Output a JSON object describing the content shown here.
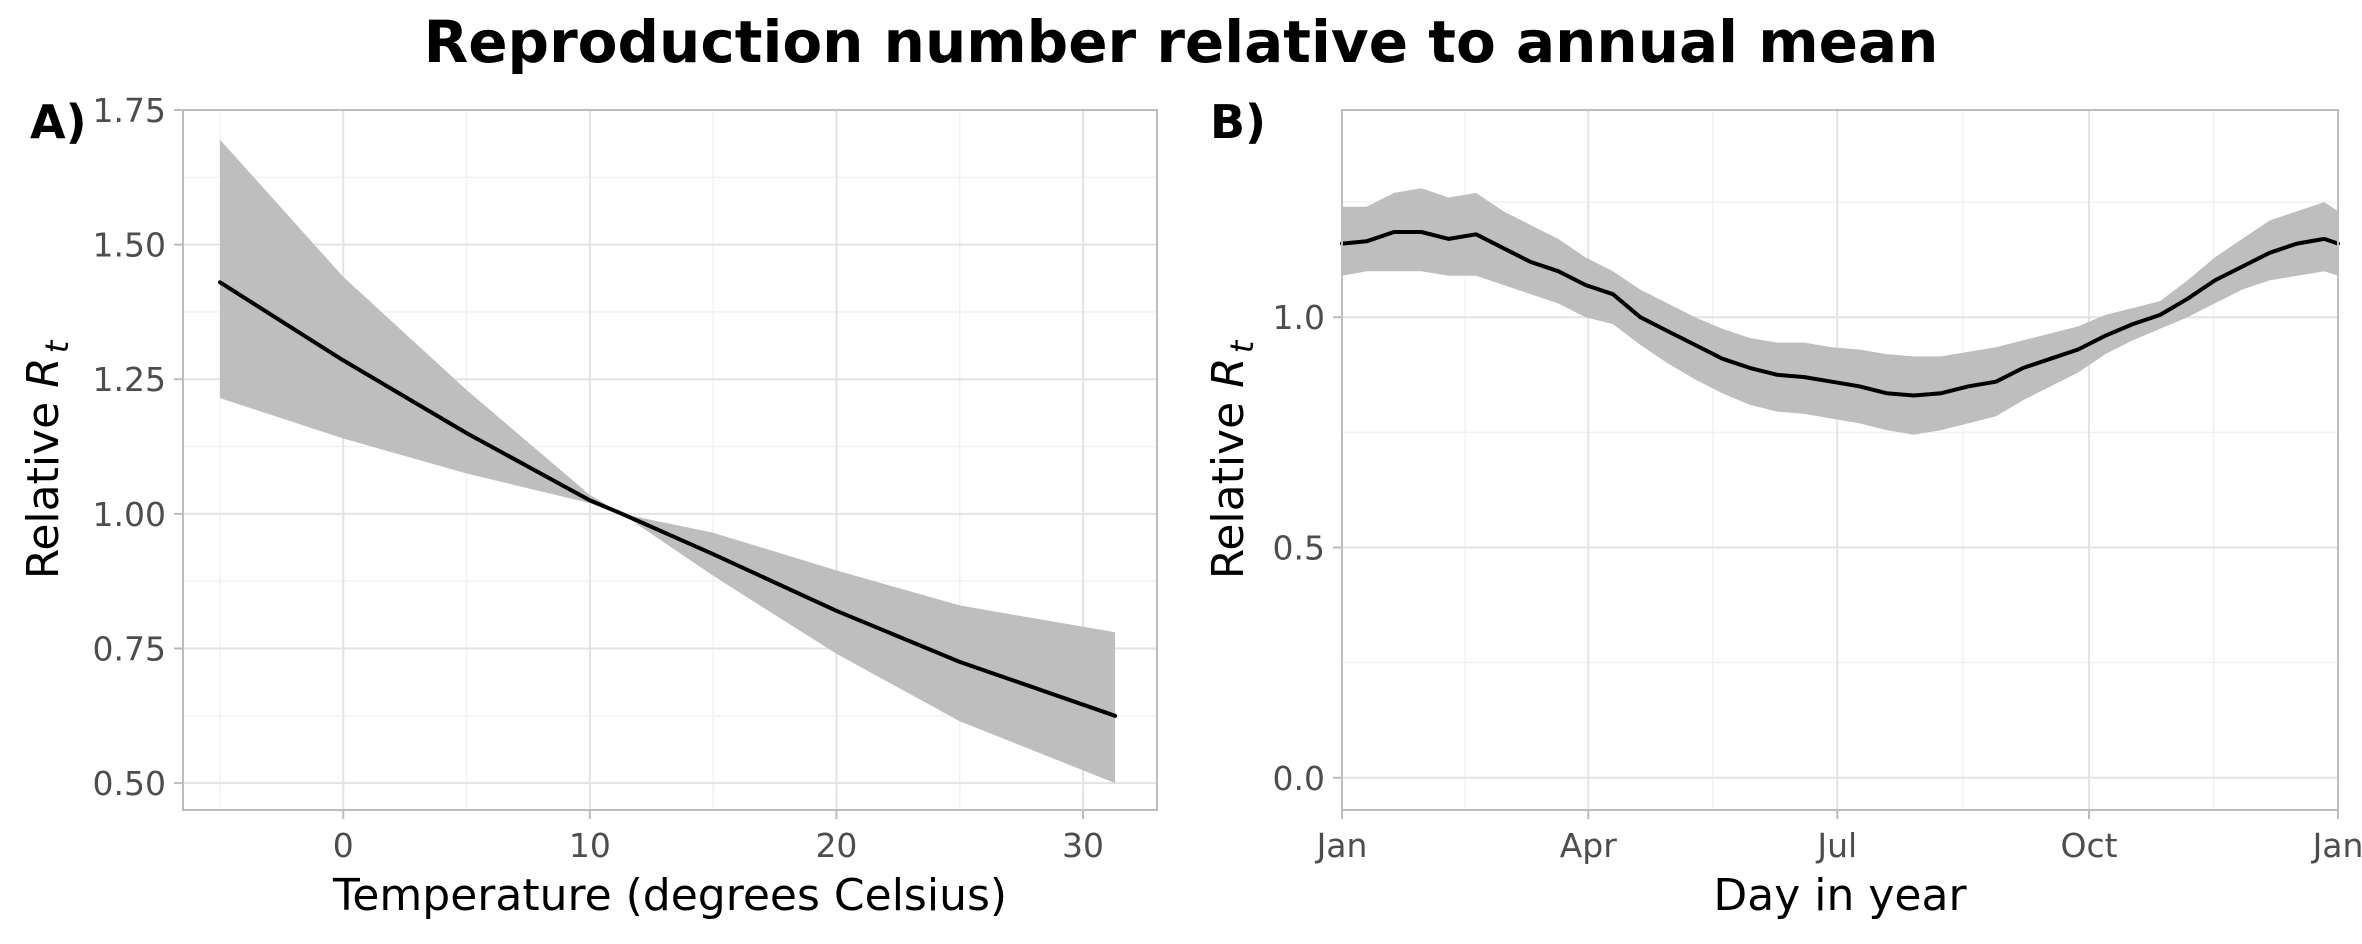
{
  "title": "Reproduction number relative to annual mean",
  "chart_data": [
    {
      "tag": "A)",
      "type": "line",
      "xlabel": "Temperature (degrees Celsius)",
      "ylabel_text": "Relative",
      "ylabel_symbol": "R",
      "ylabel_subscript": "t",
      "xlim": [
        -6.5,
        33
      ],
      "ylim": [
        0.45,
        1.75
      ],
      "x_ticks": [
        0,
        10,
        20,
        30
      ],
      "x_tick_labels": [
        "0",
        "10",
        "20",
        "30"
      ],
      "y_ticks": [
        0.5,
        0.75,
        1.0,
        1.25,
        1.5,
        1.75
      ],
      "y_tick_labels": [
        "0.50",
        "0.75",
        "1.00",
        "1.25",
        "1.50",
        "1.75"
      ],
      "grid": true,
      "x": [
        -5,
        0,
        5,
        10,
        11.3,
        15,
        20,
        25,
        31.3
      ],
      "y": [
        1.43,
        1.285,
        1.15,
        1.025,
        1.0,
        0.925,
        0.82,
        0.725,
        0.625
      ],
      "ci_lower": [
        1.215,
        1.14,
        1.075,
        1.02,
        1.0,
        0.885,
        0.74,
        0.615,
        0.5
      ],
      "ci_upper": [
        1.695,
        1.44,
        1.23,
        1.035,
        1.0,
        0.965,
        0.895,
        0.83,
        0.78
      ]
    },
    {
      "tag": "B)",
      "type": "line",
      "xlabel": "Day in year",
      "ylabel_text": "Relative",
      "ylabel_symbol": "R",
      "ylabel_subscript": "t",
      "xlim": [
        1,
        365
      ],
      "ylim": [
        -0.07,
        1.45
      ],
      "x_ticks": [
        1,
        91,
        182,
        274,
        365
      ],
      "x_tick_labels": [
        "Jan",
        "Apr",
        "Jul",
        "Oct",
        "Jan"
      ],
      "y_ticks": [
        0.0,
        0.5,
        1.0
      ],
      "y_tick_labels": [
        "0.0",
        "0.5",
        "1.0"
      ],
      "grid": true,
      "x": [
        1,
        10,
        20,
        30,
        40,
        50,
        60,
        70,
        80,
        90,
        100,
        110,
        120,
        130,
        140,
        150,
        160,
        170,
        180,
        190,
        200,
        210,
        220,
        230,
        240,
        250,
        260,
        270,
        280,
        290,
        300,
        310,
        320,
        330,
        340,
        350,
        360,
        365
      ],
      "y": [
        1.16,
        1.165,
        1.185,
        1.185,
        1.17,
        1.18,
        1.15,
        1.12,
        1.1,
        1.07,
        1.05,
        1.0,
        0.97,
        0.94,
        0.91,
        0.89,
        0.875,
        0.87,
        0.86,
        0.85,
        0.835,
        0.83,
        0.835,
        0.85,
        0.86,
        0.89,
        0.91,
        0.93,
        0.96,
        0.985,
        1.005,
        1.04,
        1.08,
        1.11,
        1.14,
        1.16,
        1.17,
        1.16
      ],
      "ci_lower": [
        1.09,
        1.1,
        1.1,
        1.1,
        1.09,
        1.09,
        1.07,
        1.05,
        1.03,
        1.0,
        0.985,
        0.94,
        0.9,
        0.865,
        0.835,
        0.81,
        0.795,
        0.79,
        0.78,
        0.77,
        0.755,
        0.745,
        0.755,
        0.77,
        0.785,
        0.82,
        0.85,
        0.88,
        0.92,
        0.95,
        0.975,
        1.0,
        1.03,
        1.06,
        1.08,
        1.09,
        1.1,
        1.09
      ],
      "ci_upper": [
        1.24,
        1.24,
        1.27,
        1.28,
        1.26,
        1.27,
        1.23,
        1.2,
        1.17,
        1.13,
        1.1,
        1.06,
        1.03,
        1.0,
        0.975,
        0.955,
        0.945,
        0.945,
        0.935,
        0.93,
        0.92,
        0.915,
        0.915,
        0.925,
        0.935,
        0.95,
        0.965,
        0.98,
        1.005,
        1.02,
        1.035,
        1.08,
        1.13,
        1.17,
        1.21,
        1.23,
        1.25,
        1.23
      ]
    }
  ]
}
